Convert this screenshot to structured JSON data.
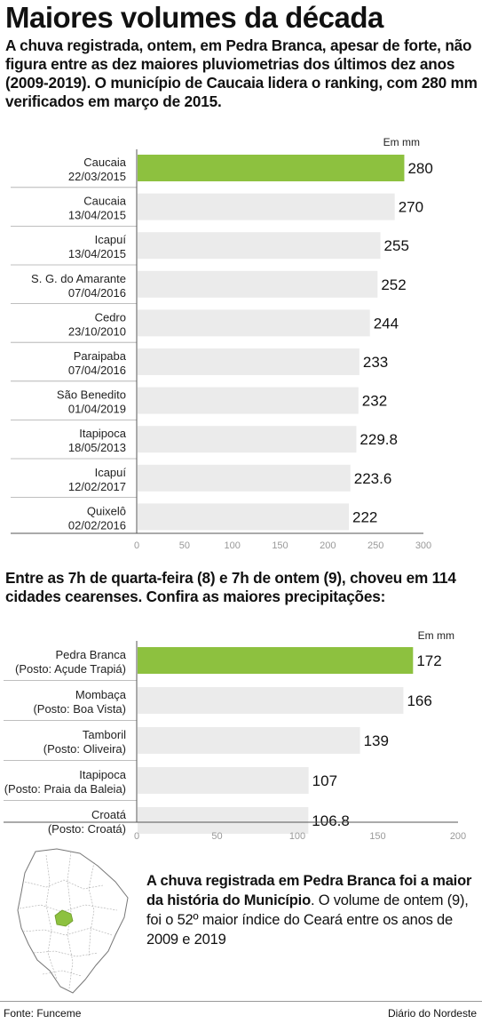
{
  "headline": "Maiores volumes da década",
  "intro": "A chuva registrada, ontem, em Pedra Branca, apesar de forte, não figura entre as dez maiores pluviometrias dos últimos dez anos (2009-2019). O município de Caucaia lidera o ranking, com 280 mm verificados em março de 2015.",
  "intro2": "Entre as 7h de quarta-feira (8) e 7h de ontem (9),  choveu em 114 cidades cearenses. Confira as maiores precipitações:",
  "note": {
    "bold": "A chuva registrada em Pedra Branca foi a maior da história do Município",
    "regular": "O volume de ontem (9), foi o 52º maior índice do Ceará entre os anos de 2009 e 2019"
  },
  "footer": {
    "source": "Fonte: Funceme",
    "credit": "Diário do Nordeste"
  },
  "colors": {
    "highlight": "#8dc13f",
    "bar": "#ebebeb",
    "axis": "#555555"
  },
  "chart_data": [
    {
      "type": "bar",
      "orientation": "horizontal",
      "unit_label": "Em mm",
      "categories": [
        [
          "Caucaia",
          "22/03/2015"
        ],
        [
          "Caucaia",
          "13/04/2015"
        ],
        [
          "Icapuí",
          "13/04/2015"
        ],
        [
          "S. G. do Amarante",
          "07/04/2016"
        ],
        [
          "Cedro",
          "23/10/2010"
        ],
        [
          "Paraipaba",
          "07/04/2016"
        ],
        [
          "São Benedito",
          "01/04/2019"
        ],
        [
          "Itapipoca",
          "18/05/2013"
        ],
        [
          "Icapuí",
          "12/02/2017"
        ],
        [
          "Quixelô",
          "02/02/2016"
        ]
      ],
      "values": [
        280,
        270,
        255,
        252,
        244,
        233,
        232,
        229.8,
        223.6,
        222
      ],
      "value_labels": [
        "280",
        "270",
        "255",
        "252",
        "244",
        "233",
        "232",
        "229.8",
        "223.6",
        "222"
      ],
      "highlight_index": 0,
      "xlim": [
        0,
        300
      ],
      "xticks": [
        0,
        50,
        100,
        150,
        200,
        250,
        300
      ]
    },
    {
      "type": "bar",
      "orientation": "horizontal",
      "unit_label": "Em mm",
      "categories": [
        [
          "Pedra Branca",
          "(Posto: Açude Trapiá)"
        ],
        [
          "Mombaça",
          "(Posto: Boa Vista)"
        ],
        [
          "Tamboril",
          "(Posto: Oliveira)"
        ],
        [
          "Itapipoca",
          "(Posto: Praia da Baleia)"
        ],
        [
          "Croatá",
          "(Posto: Croatá)"
        ]
      ],
      "values": [
        172,
        166,
        139,
        107,
        106.8
      ],
      "value_labels": [
        "172",
        "166",
        "139",
        "107",
        "106.8"
      ],
      "highlight_index": 0,
      "xlim": [
        0,
        200
      ],
      "xticks": [
        0,
        50,
        100,
        150,
        200
      ]
    }
  ]
}
